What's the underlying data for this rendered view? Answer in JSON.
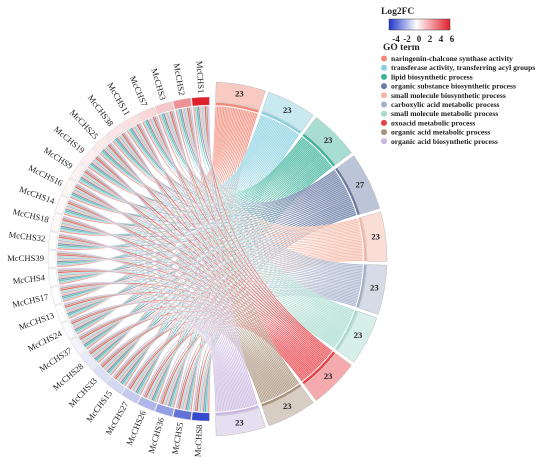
{
  "chart_data": {
    "type": "chord",
    "genes": [
      "McCHS1",
      "McCHS2",
      "McCHS3",
      "McCHS7",
      "McCHS11",
      "McCHS38",
      "McCHS25",
      "McCHS19",
      "McCHS9",
      "McCHS16",
      "McCHS14",
      "McCHS18",
      "McCHS32",
      "McCHS39",
      "McCHS4",
      "McCHS17",
      "McCHS13",
      "McCHS24",
      "McCHS37",
      "McCHS28",
      "McCHS33",
      "McCHS15",
      "McCHS27",
      "McCHS26",
      "McCHS36",
      "McCHS5",
      "McCHS8"
    ],
    "log2fc": [
      6.5,
      3.2,
      1.6,
      1.2,
      0.9,
      0.8,
      0.6,
      0.5,
      0.4,
      0.3,
      0.2,
      0.2,
      0.1,
      0.1,
      0,
      0,
      0,
      -0.1,
      -0.3,
      -0.5,
      -0.8,
      -1.0,
      -1.3,
      -1.8,
      -2.4,
      -3.5,
      -4.5
    ],
    "terms": [
      {
        "name": "naringenin-chalcone synthase activity",
        "count": "23",
        "color": "#f08a78",
        "bold": true
      },
      {
        "name": "transferase activity, transferring acyl groups",
        "count": "23",
        "color": "#88cfe0",
        "bold": true
      },
      {
        "name": "lipid biosynthetic process",
        "count": "23",
        "color": "#3fb39c",
        "bold": false
      },
      {
        "name": "organic substance biosynthetic process",
        "count": "27",
        "color": "#6b7ca6",
        "bold": false
      },
      {
        "name": "small molecule biosynthetic process",
        "count": "23",
        "color": "#f4b6a3",
        "bold": false
      },
      {
        "name": "carboxylic acid metabolic process",
        "count": "23",
        "color": "#a3b0c9",
        "bold": false
      },
      {
        "name": "small molecule metabolic process",
        "count": "23",
        "color": "#a5dbcb",
        "bold": false
      },
      {
        "name": "oxoacid metabolic process",
        "count": "23",
        "color": "#e8434a",
        "bold": false
      },
      {
        "name": "organic acid metabolic process",
        "count": "23",
        "color": "#a8917a",
        "bold": false
      },
      {
        "name": "organic acid biosynthetic process",
        "count": "23",
        "color": "#c8b6df",
        "bold": false
      }
    ],
    "legend_fc_title": "Log2FC",
    "legend_fc_ticks": [
      "-4",
      "-2",
      "0",
      "2",
      "4",
      "6"
    ],
    "legend_term_title": "GO term",
    "fc_colors": {
      "low": "#1f35c8",
      "mid": "#ffffff",
      "high": "#e0202a"
    }
  }
}
